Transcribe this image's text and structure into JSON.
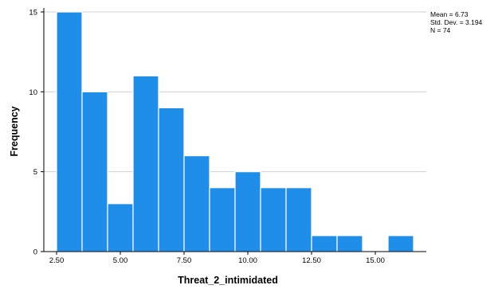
{
  "chart_data": {
    "type": "bar",
    "subtype": "histogram",
    "xlabel": "Threat_2_intimidated",
    "ylabel": "Frequency",
    "xlim": [
      2.0,
      17.0
    ],
    "ylim": [
      0,
      15
    ],
    "x_ticks": [
      2.5,
      5.0,
      7.5,
      10.0,
      12.5,
      15.0
    ],
    "x_tick_labels": [
      "2.50",
      "5.00",
      "7.50",
      "10.00",
      "12.50",
      "15.00"
    ],
    "y_ticks": [
      0,
      5,
      10,
      15
    ],
    "y_tick_labels": [
      "0",
      "5",
      "10",
      "15"
    ],
    "bin_width": 1.0,
    "bins": [
      {
        "x0": 2.5,
        "x1": 3.5,
        "count": 15
      },
      {
        "x0": 3.5,
        "x1": 4.5,
        "count": 10
      },
      {
        "x0": 4.5,
        "x1": 5.5,
        "count": 3
      },
      {
        "x0": 5.5,
        "x1": 6.5,
        "count": 11
      },
      {
        "x0": 6.5,
        "x1": 7.5,
        "count": 9
      },
      {
        "x0": 7.5,
        "x1": 8.5,
        "count": 6
      },
      {
        "x0": 8.5,
        "x1": 9.5,
        "count": 4
      },
      {
        "x0": 9.5,
        "x1": 10.5,
        "count": 5
      },
      {
        "x0": 10.5,
        "x1": 11.5,
        "count": 4
      },
      {
        "x0": 11.5,
        "x1": 12.5,
        "count": 4
      },
      {
        "x0": 12.5,
        "x1": 13.5,
        "count": 1
      },
      {
        "x0": 13.5,
        "x1": 14.5,
        "count": 1
      },
      {
        "x0": 14.5,
        "x1": 15.5,
        "count": 0
      },
      {
        "x0": 15.5,
        "x1": 16.5,
        "count": 1
      }
    ],
    "grid": "horizontal",
    "bar_color": "#1f8ee8",
    "bar_edge_color": "#ffffff",
    "stats": {
      "mean": "Mean = 6.73",
      "std_dev": "Std. Dev. = 3.194",
      "n": "N = 74"
    },
    "stats_placement": "top-right"
  }
}
